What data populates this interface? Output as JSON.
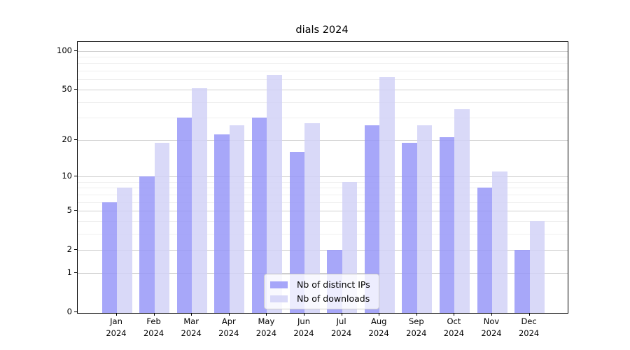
{
  "title": "dials 2024",
  "chart_data": {
    "type": "bar",
    "title": "dials 2024",
    "scale": "log1p",
    "grid": true,
    "legend_position": "lower center",
    "categories": [
      "Jan",
      "Feb",
      "Mar",
      "Apr",
      "May",
      "Jun",
      "Jul",
      "Aug",
      "Sep",
      "Oct",
      "Nov",
      "Dec"
    ],
    "x_tick_year": "2024",
    "series": [
      {
        "name": "Nb of distinct IPs",
        "color": "#9494f8",
        "opacity": 0.82,
        "values": [
          6,
          10,
          30,
          22,
          30,
          16,
          2,
          26,
          19,
          21,
          8,
          2
        ]
      },
      {
        "name": "Nb of downloads",
        "color": "#d1d1f6",
        "opacity": 0.82,
        "values": [
          8,
          19,
          51,
          26,
          65,
          27,
          9,
          63,
          26,
          35,
          11,
          4
        ]
      }
    ],
    "y_ticks": [
      0,
      1,
      2,
      5,
      10,
      20,
      50,
      100
    ],
    "y_minor_gridlines": [
      3,
      4,
      6,
      7,
      8,
      9,
      30,
      40,
      60,
      70,
      80,
      90
    ],
    "ylim": [
      0,
      115
    ]
  }
}
